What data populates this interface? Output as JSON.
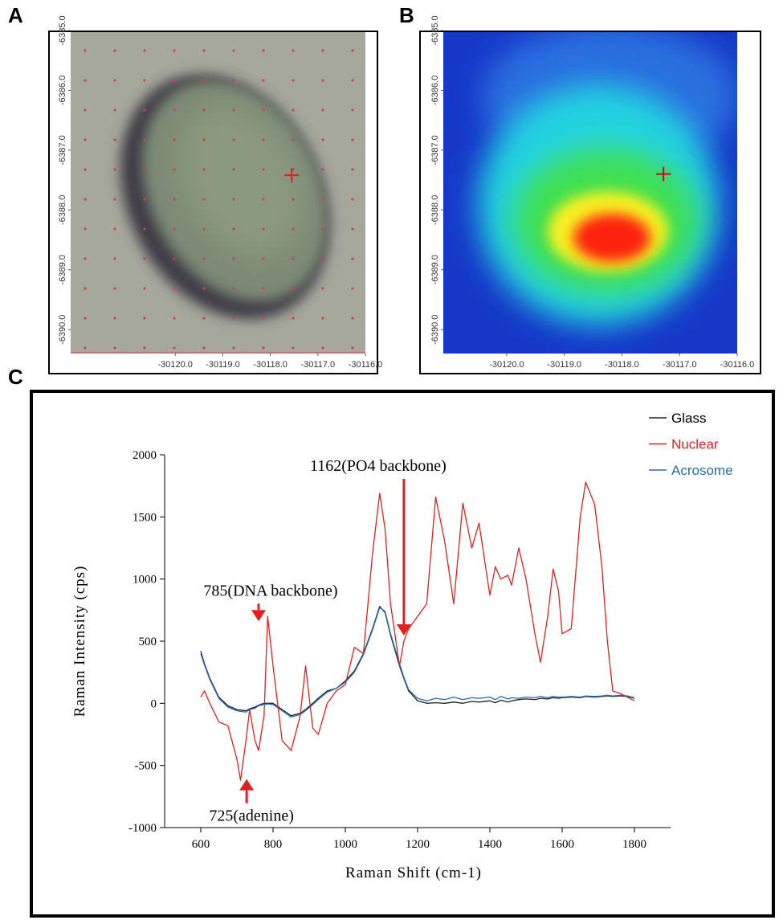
{
  "chart_data": [
    {
      "type": "image",
      "label": "A",
      "xlim": [
        -30122.2,
        -30116
      ],
      "ylim": [
        -6390.4,
        -6385
      ],
      "xticks": [
        {
          "value": -30120,
          "label": "-30120.0"
        },
        {
          "value": -30119,
          "label": "-30119.0"
        },
        {
          "value": -30118,
          "label": "-30118.0"
        },
        {
          "value": -30117,
          "label": "-30117.0"
        },
        {
          "value": -30116,
          "label": "-30116.0"
        }
      ],
      "yticks": [
        {
          "value": -6385,
          "label": "-6385.0"
        },
        {
          "value": -6386,
          "label": "-6386.0"
        },
        {
          "value": -6387,
          "label": "-6387.0"
        },
        {
          "value": -6388,
          "label": "-6388.0"
        },
        {
          "value": -6389,
          "label": "-6389.0"
        },
        {
          "value": -6390,
          "label": "-6390.0"
        }
      ],
      "marker": {
        "x": -30117.55,
        "y": -6387.42,
        "color": "#e02020"
      }
    },
    {
      "type": "heatmap",
      "label": "B",
      "xlim": [
        -30121.1,
        -30116
      ],
      "ylim": [
        -6390.4,
        -6385
      ],
      "xticks": [
        {
          "value": -30120,
          "label": "-30120.0"
        },
        {
          "value": -30119,
          "label": "-30119.0"
        },
        {
          "value": -30118,
          "label": "-30118.0"
        },
        {
          "value": -30117,
          "label": "-30117.0"
        },
        {
          "value": -30116,
          "label": "-30116.0"
        }
      ],
      "yticks": [
        {
          "value": -6385,
          "label": "-6385.0"
        },
        {
          "value": -6386,
          "label": "-6386.0"
        },
        {
          "value": -6387,
          "label": "-6387.0"
        },
        {
          "value": -6388,
          "label": "-6388.0"
        },
        {
          "value": -6389,
          "label": "-6389.0"
        },
        {
          "value": -6390,
          "label": "-6390.0"
        }
      ],
      "marker": {
        "x": -30117.28,
        "y": -6387.4,
        "color": "#c01010"
      }
    },
    {
      "type": "line",
      "label": "C",
      "xlabel": "Raman Shift (cm-1)",
      "ylabel": "Raman Intensity (cps)",
      "xlim": [
        500,
        1900
      ],
      "ylim": [
        -1000,
        2000
      ],
      "xticks": [
        600,
        800,
        1000,
        1200,
        1400,
        1600,
        1800
      ],
      "yticks": [
        -1000,
        -500,
        0,
        500,
        1000,
        1500,
        2000
      ],
      "legend": "upper right",
      "x": [
        600,
        610,
        625,
        650,
        675,
        700,
        710,
        725,
        735,
        750,
        760,
        775,
        785,
        800,
        825,
        850,
        875,
        890,
        910,
        925,
        950,
        975,
        1000,
        1025,
        1050,
        1075,
        1095,
        1110,
        1125,
        1150,
        1162,
        1175,
        1200,
        1225,
        1250,
        1275,
        1300,
        1325,
        1350,
        1370,
        1400,
        1415,
        1430,
        1450,
        1460,
        1480,
        1500,
        1525,
        1540,
        1560,
        1575,
        1590,
        1600,
        1625,
        1650,
        1665,
        1690,
        1710,
        1725,
        1740,
        1760,
        1780,
        1800
      ],
      "series": [
        {
          "name": "Glass",
          "color": "#222222",
          "values": [
            420,
            320,
            200,
            50,
            -20,
            -50,
            -55,
            -60,
            -45,
            -30,
            -15,
            0,
            0,
            0,
            -50,
            -100,
            -80,
            -50,
            0,
            40,
            100,
            120,
            180,
            260,
            400,
            600,
            780,
            730,
            550,
            300,
            200,
            100,
            20,
            0,
            5,
            0,
            10,
            0,
            15,
            10,
            20,
            5,
            25,
            10,
            20,
            30,
            35,
            30,
            40,
            35,
            45,
            40,
            45,
            50,
            45,
            55,
            50,
            55,
            60,
            55,
            60,
            55,
            40
          ]
        },
        {
          "name": "Nuclear",
          "color": "#e02020",
          "values": [
            50,
            100,
            0,
            -150,
            -180,
            -450,
            -620,
            -300,
            -50,
            -300,
            -380,
            -100,
            700,
            300,
            -300,
            -380,
            -100,
            300,
            -200,
            -250,
            0,
            100,
            150,
            450,
            400,
            1200,
            1690,
            1400,
            800,
            300,
            500,
            600,
            700,
            800,
            1660,
            1300,
            800,
            1610,
            1250,
            1450,
            870,
            1100,
            1000,
            1030,
            950,
            1250,
            1000,
            550,
            330,
            700,
            1080,
            900,
            560,
            600,
            1500,
            1780,
            1600,
            1100,
            500,
            100,
            80,
            50,
            20
          ]
        },
        {
          "name": "Acrosome",
          "color": "#2a6ab5",
          "values": [
            400,
            310,
            190,
            40,
            -30,
            -60,
            -65,
            -70,
            -50,
            -40,
            -20,
            -10,
            -5,
            -10,
            -60,
            -110,
            -90,
            -60,
            -10,
            30,
            90,
            120,
            170,
            250,
            390,
            590,
            770,
            740,
            560,
            320,
            210,
            110,
            40,
            20,
            40,
            30,
            50,
            30,
            45,
            40,
            50,
            30,
            55,
            35,
            45,
            40,
            50,
            45,
            55,
            45,
            55,
            50,
            50,
            55,
            50,
            60,
            55,
            60,
            65,
            60,
            65,
            60,
            45
          ]
        }
      ],
      "annotations": [
        {
          "text": "1162(PO4 backbone)",
          "x": 1162,
          "y": 545,
          "color": "#e02020"
        },
        {
          "text": "785(DNA backbone)",
          "x": 760,
          "y": 660,
          "color": "#e02020"
        },
        {
          "text": "725(adenine)",
          "x": 727,
          "y": -610,
          "color": "#e02020"
        }
      ]
    }
  ]
}
